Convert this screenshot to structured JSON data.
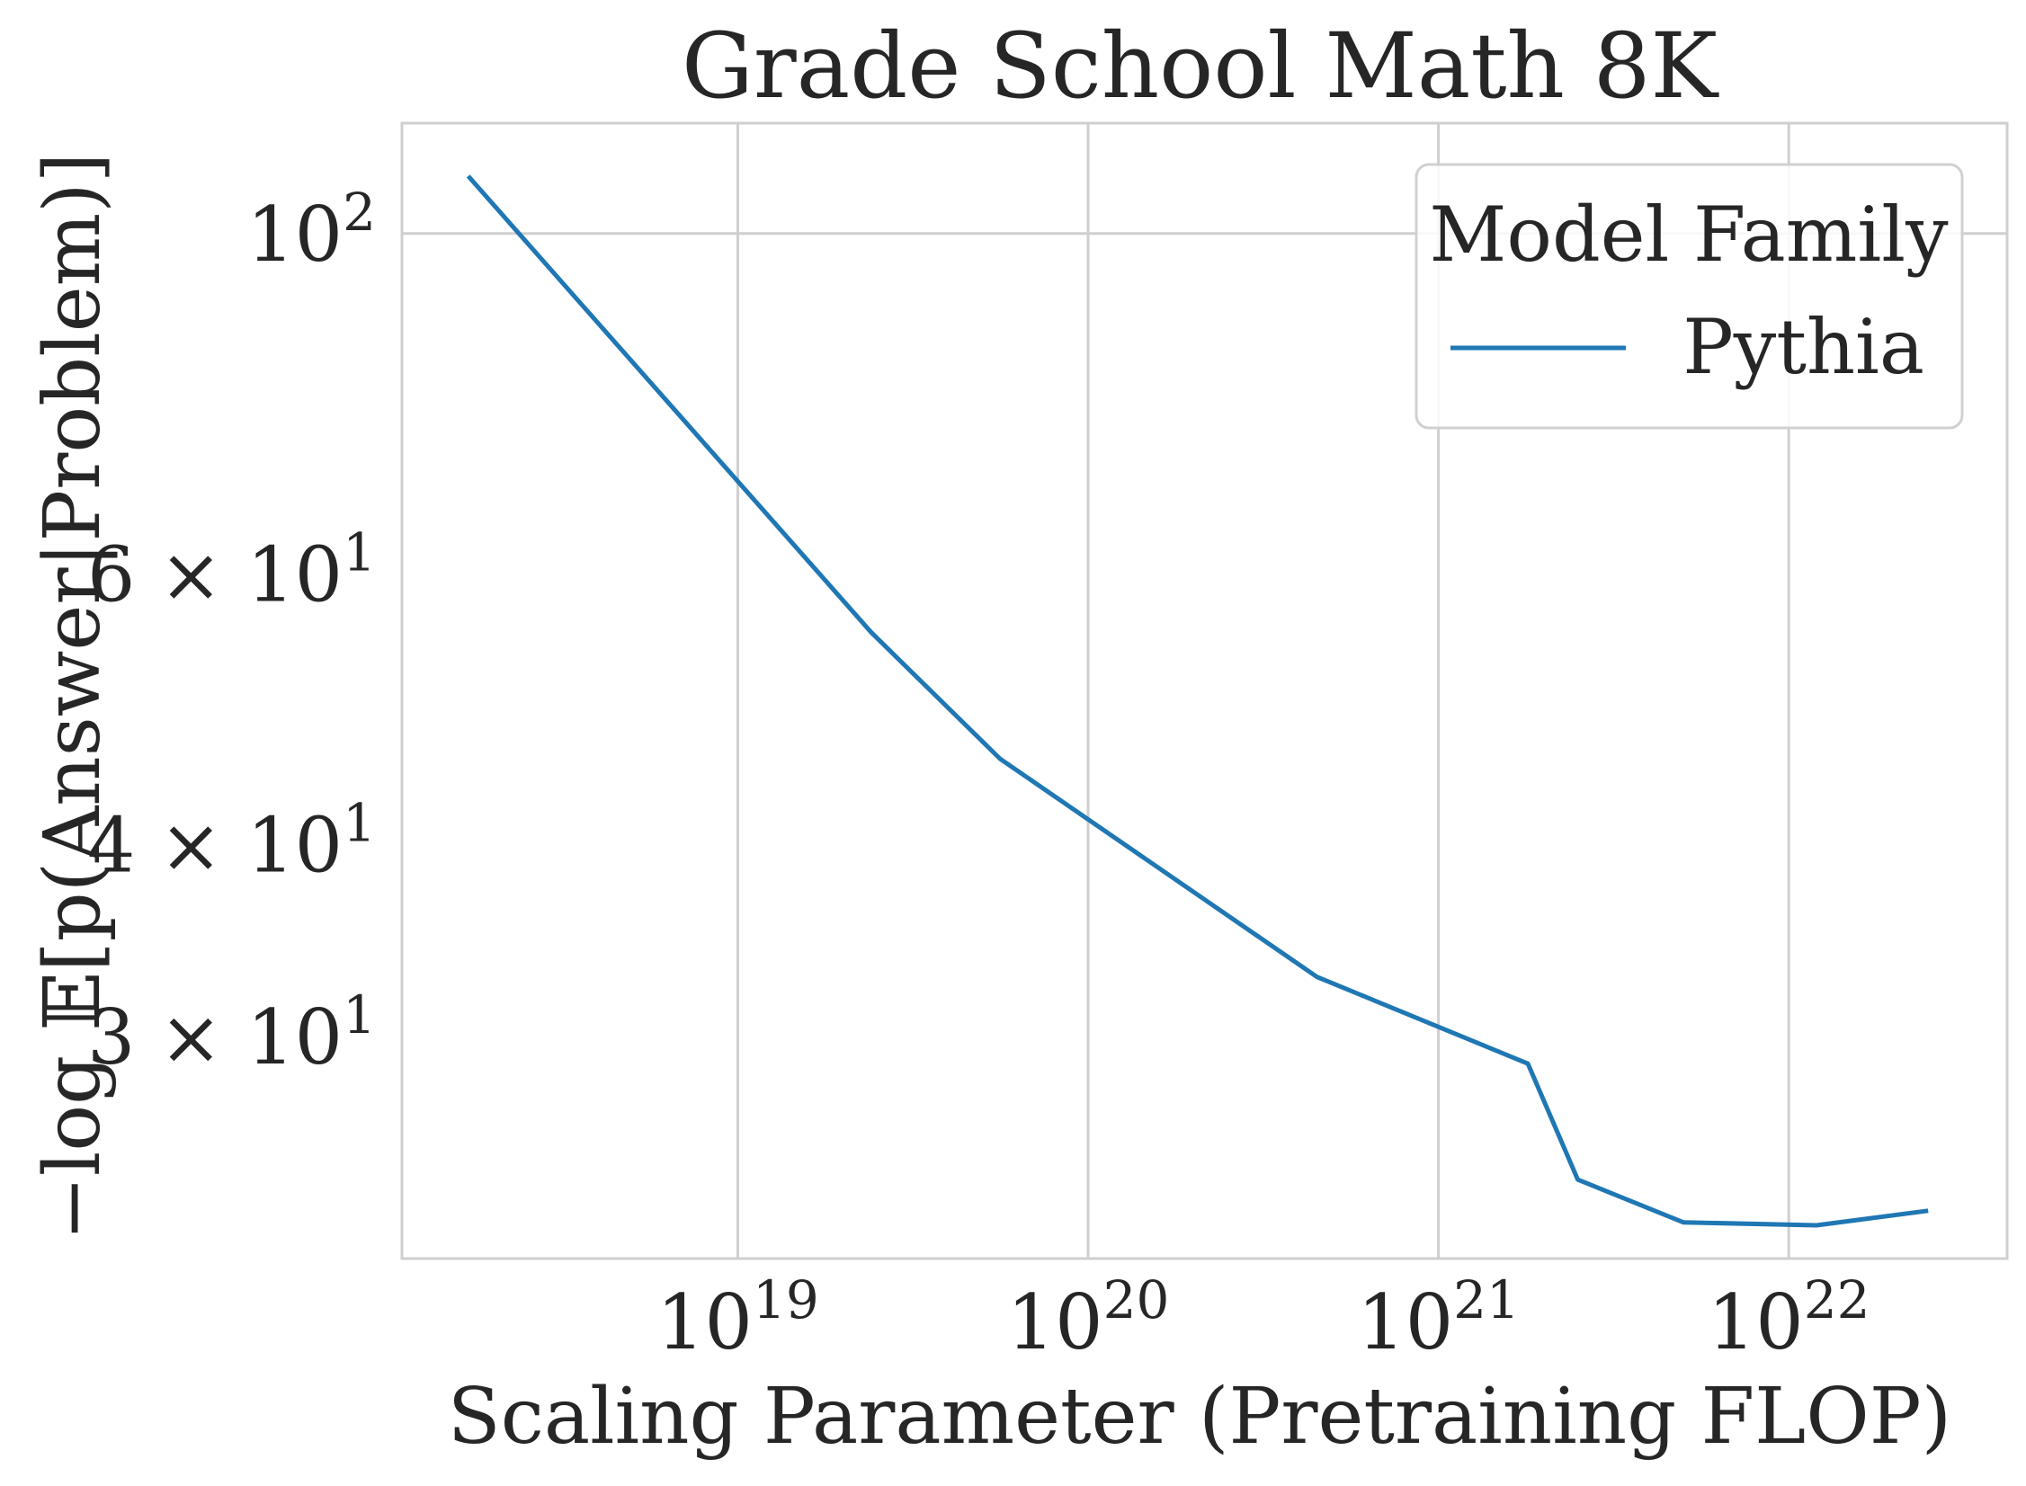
{
  "chart_data": {
    "type": "line",
    "title": "Grade School Math 8K",
    "xlabel": "Scaling Parameter (Pretraining FLOP)",
    "ylabel": "−log 𝔼[p(Answer|Problem)]",
    "x_scale": "log",
    "y_scale": "log",
    "xlim": [
      1.1e+18,
      4.2e+22
    ],
    "ylim": [
      21.5,
      118
    ],
    "x_ticks": [
      {
        "value": 1e+19,
        "base": "10",
        "exp": "19"
      },
      {
        "value": 1e+20,
        "base": "10",
        "exp": "20"
      },
      {
        "value": 1e+21,
        "base": "10",
        "exp": "21"
      },
      {
        "value": 1e+22,
        "base": "10",
        "exp": "22"
      }
    ],
    "y_ticks": [
      {
        "value": 100,
        "base": "10",
        "exp": "2",
        "prefix": ""
      },
      {
        "value": 60,
        "base": "10",
        "exp": "1",
        "prefix": "6 × "
      },
      {
        "value": 40,
        "base": "10",
        "exp": "1",
        "prefix": "4 × "
      },
      {
        "value": 30,
        "base": "10",
        "exp": "1",
        "prefix": "3 × "
      }
    ],
    "grid": true,
    "legend": {
      "title": "Model Family",
      "placement": "top-right"
    },
    "series": [
      {
        "name": "Pythia",
        "color": "#1f77b4",
        "x": [
          1.7e+18,
          2.4e+19,
          5.6e+19,
          4.5e+20,
          1.8e+21,
          2.5e+21,
          5e+21,
          1.2e+22,
          2.5e+22
        ],
        "y": [
          109,
          55,
          45.5,
          32.8,
          28.8,
          24.2,
          22.7,
          22.6,
          23.1
        ]
      }
    ]
  }
}
